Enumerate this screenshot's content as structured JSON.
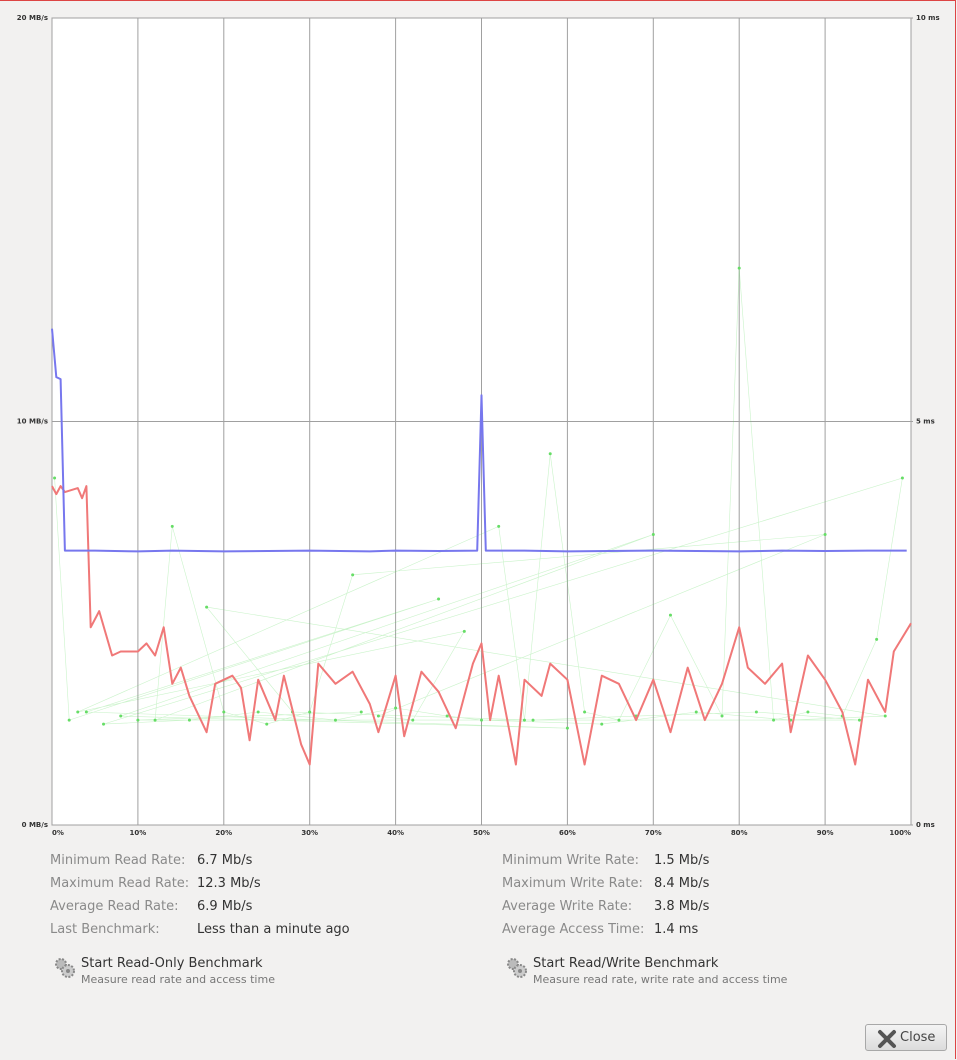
{
  "chart_data": {
    "type": "line",
    "xlim": [
      0,
      100
    ],
    "xticks": [
      {
        "value": 0,
        "label": "0%"
      },
      {
        "value": 10,
        "label": "10%"
      },
      {
        "value": 20,
        "label": "20%"
      },
      {
        "value": 30,
        "label": "30%"
      },
      {
        "value": 40,
        "label": "40%"
      },
      {
        "value": 50,
        "label": "50%"
      },
      {
        "value": 60,
        "label": "60%"
      },
      {
        "value": 70,
        "label": "70%"
      },
      {
        "value": 80,
        "label": "80%"
      },
      {
        "value": 90,
        "label": "90%"
      },
      {
        "value": 100,
        "label": "100%"
      }
    ],
    "ylim": [
      0,
      20
    ],
    "yticks": [
      {
        "value": 0,
        "label": "0 MB/s"
      },
      {
        "value": 10,
        "label": "10 MB/s"
      },
      {
        "value": 20,
        "label": "20 MB/s"
      }
    ],
    "y2lim": [
      0,
      10
    ],
    "y2ticks": [
      {
        "value": 0,
        "label": "0 ms"
      },
      {
        "value": 5,
        "label": "5 ms"
      },
      {
        "value": 10,
        "label": "10 ms"
      }
    ],
    "grid": true,
    "series": [
      {
        "color": "#7777ee",
        "axis": "y",
        "markers": false,
        "x": [
          0,
          0.5,
          1,
          1.5,
          5,
          10,
          14,
          20,
          30,
          37,
          40,
          45,
          49.5,
          50,
          50.5,
          55,
          60,
          70,
          80,
          85,
          90,
          95,
          99.5
        ],
        "values": [
          12.3,
          11.1,
          11.05,
          6.8,
          6.8,
          6.78,
          6.8,
          6.78,
          6.8,
          6.78,
          6.8,
          6.79,
          6.8,
          10.65,
          6.8,
          6.8,
          6.78,
          6.8,
          6.78,
          6.8,
          6.79,
          6.8,
          6.8
        ]
      },
      {
        "color": "#f07878",
        "axis": "y",
        "markers": false,
        "x": [
          0,
          0.5,
          1,
          1.5,
          3,
          3.5,
          4,
          4.5,
          5.5,
          7,
          8,
          10,
          11,
          12,
          13,
          14,
          15,
          16,
          18,
          19,
          21,
          22,
          23,
          24,
          26,
          27,
          29,
          30,
          31,
          33,
          35,
          37,
          38,
          40,
          41,
          43,
          45,
          47,
          49,
          50,
          51,
          52,
          54,
          55,
          57,
          58,
          60,
          62,
          64,
          66,
          68,
          70,
          72,
          74,
          76,
          78,
          80,
          81,
          83,
          85,
          86,
          88,
          90,
          92,
          93.5,
          95,
          97,
          98,
          100
        ],
        "values": [
          8.4,
          8.2,
          8.4,
          8.25,
          8.35,
          8.1,
          8.4,
          4.9,
          5.3,
          4.2,
          4.3,
          4.3,
          4.5,
          4.2,
          4.9,
          3.5,
          3.9,
          3.2,
          2.3,
          3.5,
          3.7,
          3.4,
          2.1,
          3.6,
          2.6,
          3.7,
          2.0,
          1.5,
          4.0,
          3.5,
          3.8,
          3.0,
          2.3,
          3.7,
          2.2,
          3.8,
          3.3,
          2.4,
          4.0,
          4.5,
          2.6,
          3.7,
          1.5,
          3.6,
          3.2,
          4.0,
          3.6,
          1.5,
          3.7,
          3.5,
          2.6,
          3.6,
          2.3,
          3.9,
          2.6,
          3.5,
          4.9,
          3.9,
          3.5,
          4.0,
          2.3,
          4.2,
          3.6,
          2.8,
          1.5,
          3.6,
          2.8,
          4.3,
          5.0
        ]
      },
      {
        "color": "#66dd66",
        "axis": "y2",
        "markers": true,
        "x": [
          0.3,
          2,
          45,
          4,
          60,
          8,
          70,
          12,
          14,
          20,
          25,
          30,
          35,
          90,
          38,
          42,
          48,
          3,
          52,
          55,
          58,
          62,
          66,
          72,
          78,
          80,
          84,
          88,
          92,
          96,
          99,
          6,
          16,
          24,
          33,
          40,
          46,
          50,
          64,
          75,
          86,
          97,
          18,
          28,
          56,
          68,
          82,
          94,
          10,
          36
        ],
        "values": [
          4.3,
          1.3,
          2.8,
          1.4,
          1.2,
          1.35,
          3.6,
          1.3,
          3.7,
          1.4,
          1.25,
          1.4,
          3.1,
          3.6,
          1.35,
          1.3,
          2.4,
          1.4,
          3.7,
          1.3,
          4.6,
          1.4,
          1.3,
          2.6,
          1.35,
          6.9,
          1.3,
          1.4,
          1.35,
          2.3,
          4.3,
          1.25,
          1.3,
          1.4,
          1.3,
          1.45,
          1.35,
          1.3,
          1.25,
          1.4,
          1.3,
          1.35,
          2.7,
          1.4,
          1.3,
          1.35,
          1.4,
          1.3,
          1.3,
          1.4
        ]
      }
    ]
  },
  "stats": {
    "left": [
      {
        "label": "Minimum Read Rate:",
        "value": "6.7 Mb/s"
      },
      {
        "label": "Maximum Read Rate:",
        "value": "12.3 Mb/s"
      },
      {
        "label": "Average Read Rate:",
        "value": "6.9 Mb/s"
      },
      {
        "label": "Last Benchmark:",
        "value": "Less than a minute ago"
      }
    ],
    "right": [
      {
        "label": "Minimum Write Rate:",
        "value": "1.5 Mb/s"
      },
      {
        "label": "Maximum Write Rate:",
        "value": "8.4 Mb/s"
      },
      {
        "label": "Average Write Rate:",
        "value": "3.8 Mb/s"
      },
      {
        "label": "Average Access Time:",
        "value": "1.4 ms"
      }
    ]
  },
  "actions": [
    {
      "title": "Start Read-Only Benchmark",
      "subtitle": "Measure read rate and access time"
    },
    {
      "title": "Start Read/Write Benchmark",
      "subtitle": "Measure read rate, write rate and access time"
    }
  ],
  "close": "Close"
}
